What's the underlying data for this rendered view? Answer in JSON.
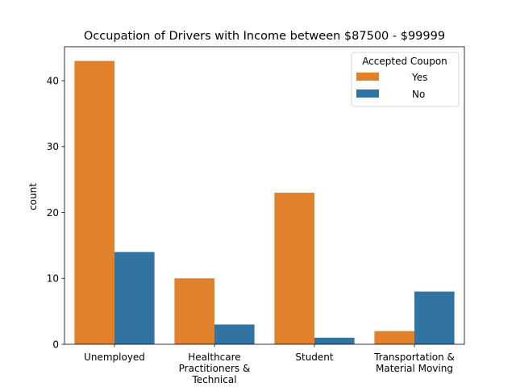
{
  "chart_data": {
    "type": "bar",
    "title": "Occupation of Drivers with Income between $87500 - $99999",
    "xlabel": "",
    "ylabel": "count",
    "ylim": [
      0,
      45.15
    ],
    "yticks": [
      0,
      10,
      20,
      30,
      40
    ],
    "categories": [
      [
        "Unemployed"
      ],
      [
        "Healthcare",
        "Practitioners &",
        "Technical"
      ],
      [
        "Student"
      ],
      [
        "Transportation &",
        "Material Moving"
      ]
    ],
    "series": [
      {
        "name": "Yes",
        "color": "#e1812c",
        "values": [
          43,
          10,
          23,
          2
        ]
      },
      {
        "name": "No",
        "color": "#3274a1",
        "values": [
          14,
          3,
          1,
          8
        ]
      }
    ],
    "legend": {
      "title": "Accepted Coupon",
      "placement": "top-right"
    },
    "grid": false
  }
}
